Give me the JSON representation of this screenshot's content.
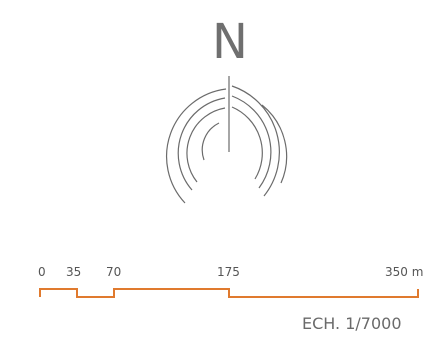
{
  "compass": {
    "north_letter": "N",
    "icon": "north-arrow-compass-icon",
    "stroke_color": "#6b6b6b"
  },
  "scale_bar": {
    "ticks": [
      "0",
      "35",
      "70",
      "175",
      "350 m"
    ],
    "color": "#e07a2e",
    "ratio_label": "ECH. 1/7000"
  }
}
